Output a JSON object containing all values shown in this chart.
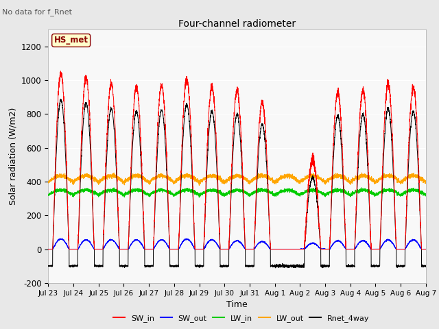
{
  "title": "Four-channel radiometer",
  "subtitle": "No data for f_Rnet",
  "xlabel": "Time",
  "ylabel": "Solar radiation (W/m2)",
  "ylim": [
    -200,
    1300
  ],
  "yticks": [
    -200,
    0,
    200,
    400,
    600,
    800,
    1000,
    1200
  ],
  "n_days": 15,
  "station_label": "HS_met",
  "fig_bg": "#e8e8e8",
  "plot_bg": "#f8f8f8",
  "colors": {
    "SW_in": "#ff0000",
    "SW_out": "#0000ff",
    "LW_in": "#00cc00",
    "LW_out": "#ffa500",
    "Rnet_4way": "#000000"
  },
  "x_tick_labels": [
    "Jul 23",
    "Jul 24",
    "Jul 25",
    "Jul 26",
    "Jul 27",
    "Jul 28",
    "Jul 29",
    "Jul 30",
    "Jul 31",
    "Aug 1",
    "Aug 2",
    "Aug 3",
    "Aug 4",
    "Aug 5",
    "Aug 6",
    "Aug 7"
  ],
  "sw_in_peaks": [
    1040,
    1020,
    980,
    960,
    970,
    1010,
    960,
    940,
    870,
    0,
    530,
    930,
    940,
    980,
    960
  ],
  "sw_out_peaks": [
    60,
    55,
    55,
    55,
    55,
    60,
    55,
    50,
    45,
    0,
    35,
    50,
    50,
    55,
    55
  ],
  "lw_in_base": 320,
  "lw_in_amp": 30,
  "lw_out_base": 395,
  "lw_out_amp": 40,
  "rnet_night": -100
}
